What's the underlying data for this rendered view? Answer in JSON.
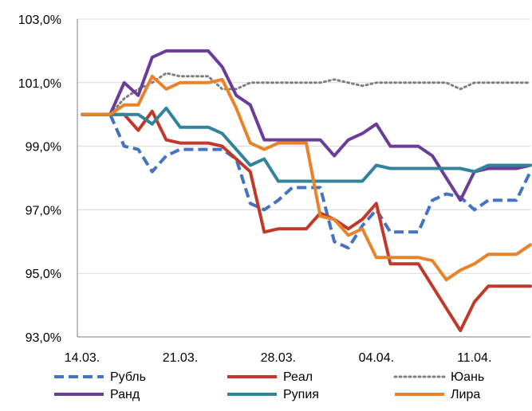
{
  "chart_data": {
    "type": "line",
    "title": "",
    "xlabel": "",
    "ylabel": "",
    "ylim": [
      93,
      103
    ],
    "y_ticks": [
      "93,0%",
      "95,0%",
      "97,0%",
      "99,0%",
      "101,0%",
      "103,0%"
    ],
    "x_ticks": [
      "14.03.",
      "21.03.",
      "28.03.",
      "04.04.",
      "11.04."
    ],
    "grid": "horizontal",
    "legend_position": "bottom",
    "series": [
      {
        "name": "Рубль",
        "color": "#4472c4",
        "dash": "dashed",
        "values": [
          100.0,
          100.0,
          100.0,
          99.0,
          98.9,
          98.2,
          98.7,
          98.9,
          98.9,
          98.9,
          98.9,
          98.6,
          97.2,
          97.0,
          97.3,
          97.7,
          97.7,
          97.7,
          96.0,
          95.8,
          96.5,
          97.0,
          96.3,
          96.3,
          96.3,
          97.3,
          97.5,
          97.4,
          97.0,
          97.3,
          97.3,
          97.3,
          98.2
        ]
      },
      {
        "name": "Реал",
        "color": "#c0392b",
        "dash": "solid",
        "values": [
          100.0,
          100.0,
          100.0,
          100.0,
          99.5,
          100.1,
          99.2,
          99.1,
          99.1,
          99.1,
          99.0,
          98.6,
          98.2,
          96.3,
          96.4,
          96.4,
          96.4,
          96.9,
          96.7,
          96.4,
          96.7,
          97.2,
          95.3,
          95.3,
          95.3,
          94.6,
          93.9,
          93.2,
          94.1,
          94.6,
          94.6,
          94.6,
          94.6
        ]
      },
      {
        "name": "Юань",
        "color": "#7f7f7f",
        "dash": "dotted",
        "values": [
          100.0,
          100.0,
          100.0,
          100.5,
          100.8,
          101.0,
          101.3,
          101.2,
          101.2,
          101.2,
          100.8,
          100.8,
          101.0,
          101.0,
          101.0,
          101.0,
          101.0,
          101.0,
          101.1,
          101.0,
          100.9,
          101.0,
          101.0,
          101.0,
          101.0,
          101.0,
          101.0,
          100.8,
          101.0,
          101.0,
          101.0,
          101.0,
          101.0
        ]
      },
      {
        "name": "Ранд",
        "color": "#6a3d9a",
        "dash": "solid",
        "values": [
          100.0,
          100.0,
          100.0,
          101.0,
          100.6,
          101.8,
          102.0,
          102.0,
          102.0,
          102.0,
          101.5,
          100.6,
          100.3,
          99.2,
          99.2,
          99.2,
          99.2,
          99.2,
          98.7,
          99.2,
          99.4,
          99.7,
          99.0,
          99.0,
          99.0,
          98.7,
          98.0,
          97.3,
          98.2,
          98.3,
          98.3,
          98.3,
          98.4
        ]
      },
      {
        "name": "Рупия",
        "color": "#31849b",
        "dash": "solid",
        "values": [
          100.0,
          100.0,
          100.0,
          100.0,
          100.0,
          99.7,
          100.2,
          99.6,
          99.6,
          99.6,
          99.4,
          98.9,
          98.4,
          98.6,
          97.9,
          97.9,
          97.9,
          97.9,
          97.9,
          97.9,
          97.9,
          98.4,
          98.3,
          98.3,
          98.3,
          98.3,
          98.3,
          98.3,
          98.2,
          98.4,
          98.4,
          98.4,
          98.4
        ]
      },
      {
        "name": "Лира",
        "color": "#e8832a",
        "dash": "solid",
        "values": [
          100.0,
          100.0,
          100.0,
          100.3,
          100.3,
          101.2,
          100.8,
          101.0,
          101.0,
          101.0,
          101.1,
          100.2,
          99.1,
          98.9,
          99.1,
          99.1,
          99.1,
          96.8,
          96.7,
          96.2,
          96.4,
          95.5,
          95.5,
          95.5,
          95.5,
          95.4,
          94.8,
          95.1,
          95.3,
          95.6,
          95.6,
          95.6,
          95.9
        ]
      }
    ]
  }
}
